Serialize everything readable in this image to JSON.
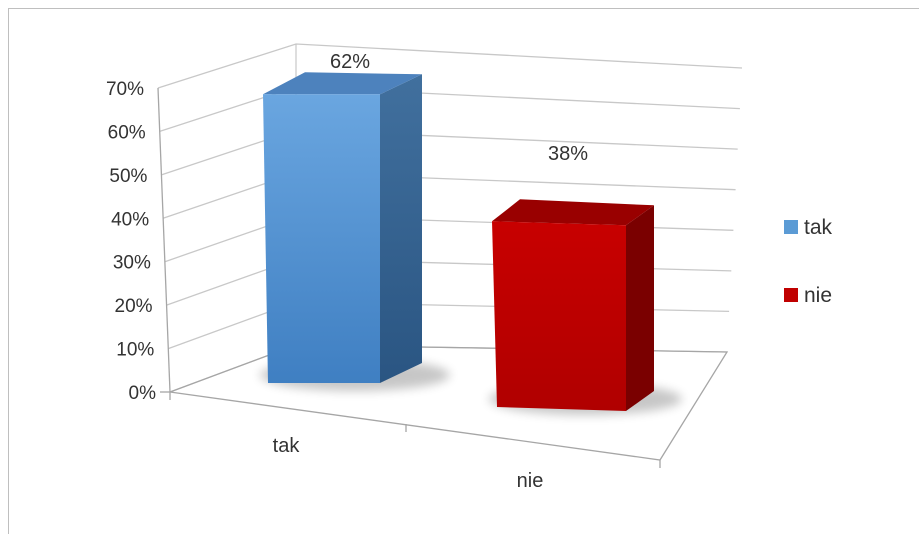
{
  "chart_data": {
    "type": "bar",
    "title": "",
    "xlabel": "",
    "ylabel": "",
    "categories": [
      "tak",
      "nie"
    ],
    "values": [
      62,
      38
    ],
    "data_labels": [
      "62%",
      "38%"
    ],
    "y_ticks": [
      "0%",
      "10%",
      "20%",
      "30%",
      "40%",
      "50%",
      "60%",
      "70%"
    ],
    "ylim": [
      0,
      70
    ],
    "grid": true,
    "three_d": true,
    "legend": {
      "placement": "right",
      "entries": [
        "tak",
        "nie"
      ]
    },
    "colors": {
      "tak": "#5b9bd5",
      "nie": "#c00000"
    }
  }
}
